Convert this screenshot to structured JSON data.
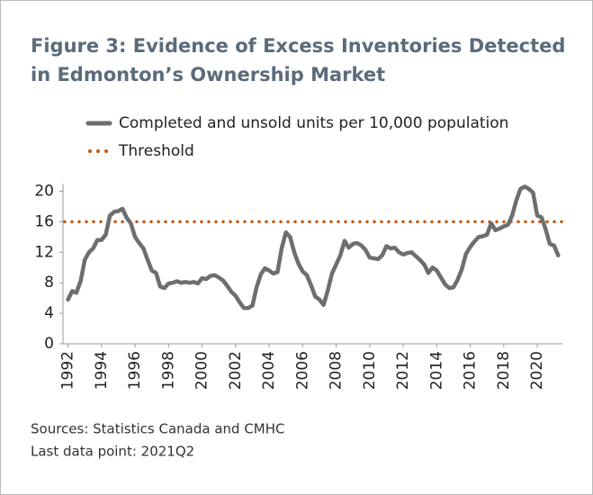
{
  "chart_data": {
    "type": "line",
    "title": [
      "Figure 3: Evidence of Excess Inventories Detected",
      "in Edmonton’s Ownership Market"
    ],
    "notes": [
      "Sources: Statistics Canada and CMHC",
      "Last data point: 2021Q2"
    ],
    "x": [
      1992,
      1992.25,
      1992.5,
      1992.75,
      1993,
      1993.25,
      1993.5,
      1993.75,
      1994,
      1994.25,
      1994.5,
      1994.75,
      1995,
      1995.25,
      1995.5,
      1995.75,
      1996,
      1996.25,
      1996.5,
      1996.75,
      1997,
      1997.25,
      1997.5,
      1997.75,
      1998,
      1998.25,
      1998.5,
      1998.75,
      1999,
      1999.25,
      1999.5,
      1999.75,
      2000,
      2000.25,
      2000.5,
      2000.75,
      2001,
      2001.25,
      2001.5,
      2001.75,
      2002,
      2002.25,
      2002.5,
      2002.75,
      2003,
      2003.25,
      2003.5,
      2003.75,
      2004,
      2004.25,
      2004.5,
      2004.75,
      2005,
      2005.25,
      2005.5,
      2005.75,
      2006,
      2006.25,
      2006.5,
      2006.75,
      2007,
      2007.25,
      2007.5,
      2007.75,
      2008,
      2008.25,
      2008.5,
      2008.75,
      2009,
      2009.25,
      2009.5,
      2009.75,
      2010,
      2010.25,
      2010.5,
      2010.75,
      2011,
      2011.25,
      2011.5,
      2011.75,
      2012,
      2012.25,
      2012.5,
      2012.75,
      2013,
      2013.25,
      2013.5,
      2013.75,
      2014,
      2014.25,
      2014.5,
      2014.75,
      2015,
      2015.25,
      2015.5,
      2015.75,
      2016,
      2016.25,
      2016.5,
      2016.75,
      2017,
      2017.25,
      2017.5,
      2017.75,
      2018,
      2018.25,
      2018.5,
      2018.75,
      2019,
      2019.25,
      2019.5,
      2019.75,
      2020,
      2020.25,
      2020.5,
      2020.75,
      2021,
      2021.25
    ],
    "series": [
      {
        "name": "Completed and unsold units per 10,000 population",
        "color": "#6d6e70",
        "values": [
          5.8,
          6.9,
          6.7,
          8.2,
          11.0,
          12.0,
          12.5,
          13.6,
          13.6,
          14.3,
          16.8,
          17.3,
          17.4,
          17.7,
          16.5,
          15.8,
          14.0,
          13.2,
          12.5,
          11.0,
          9.6,
          9.3,
          7.5,
          7.3,
          7.9,
          8.0,
          8.2,
          8.0,
          8.1,
          8.0,
          8.1,
          7.9,
          8.6,
          8.5,
          8.9,
          9.0,
          8.7,
          8.3,
          7.6,
          6.8,
          6.3,
          5.4,
          4.7,
          4.7,
          5.0,
          7.4,
          9.1,
          9.9,
          9.6,
          9.2,
          9.4,
          12.5,
          14.6,
          14.0,
          12.0,
          10.5,
          9.5,
          9.0,
          7.7,
          6.2,
          5.8,
          5.1,
          7.0,
          9.2,
          10.4,
          11.6,
          13.5,
          12.6,
          13.1,
          13.2,
          12.9,
          12.3,
          11.3,
          11.2,
          11.1,
          11.6,
          12.8,
          12.5,
          12.6,
          12.0,
          11.7,
          11.9,
          12.0,
          11.5,
          11.0,
          10.4,
          9.3,
          10.0,
          9.6,
          8.7,
          7.8,
          7.3,
          7.4,
          8.4,
          9.8,
          11.8,
          12.7,
          13.4,
          14.0,
          14.1,
          14.3,
          15.8,
          14.9,
          15.1,
          15.4,
          15.6,
          16.8,
          18.8,
          20.3,
          20.6,
          20.3,
          19.8,
          16.8,
          16.6,
          15.0,
          13.1,
          12.9,
          11.6
        ]
      }
    ],
    "threshold": {
      "name": "Threshold",
      "value": 16,
      "color": "#c55a11"
    },
    "xlim": [
      1991.7,
      2021.5
    ],
    "xticks": [
      1992,
      1994,
      1996,
      1998,
      2000,
      2002,
      2004,
      2006,
      2008,
      2010,
      2012,
      2014,
      2016,
      2018,
      2020
    ],
    "ylim": [
      0,
      21
    ],
    "yticks": [
      0,
      4,
      8,
      12,
      16,
      20
    ]
  }
}
